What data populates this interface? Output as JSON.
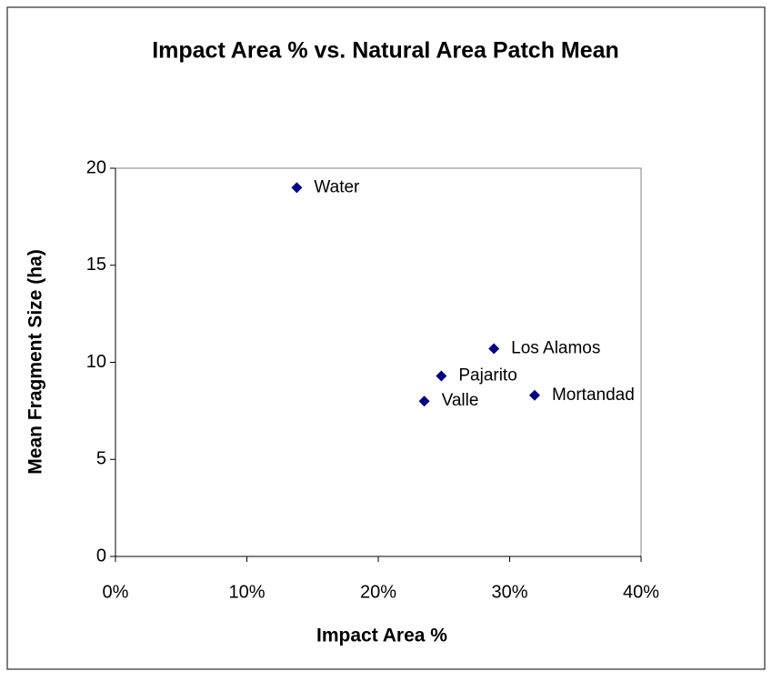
{
  "chart_data": {
    "type": "scatter",
    "title": "Impact Area % vs. Natural Area Patch Mean",
    "x_label": "Impact Area %",
    "y_label": "Mean Fragment Size (ha)",
    "series": [
      {
        "color": "#000080",
        "x": [
          13.8,
          28.8,
          24.8,
          23.5,
          31.9
        ],
        "values": [
          19.0,
          10.7,
          9.3,
          8.0,
          8.3
        ],
        "point_labels": [
          "Water",
          "Los Alamos",
          "Pajarito",
          "Valle",
          "Mortandad"
        ]
      }
    ],
    "xlim": [
      0,
      40
    ],
    "xticks": [
      {
        "value": 0,
        "label": "0%"
      },
      {
        "value": 10,
        "label": "10%"
      },
      {
        "value": 20,
        "label": "20%"
      },
      {
        "value": 30,
        "label": "30%"
      },
      {
        "value": 40,
        "label": "40%"
      }
    ],
    "ylim": [
      0,
      20
    ],
    "yticks": [
      0,
      5,
      10,
      15,
      20
    ],
    "grid": false
  }
}
